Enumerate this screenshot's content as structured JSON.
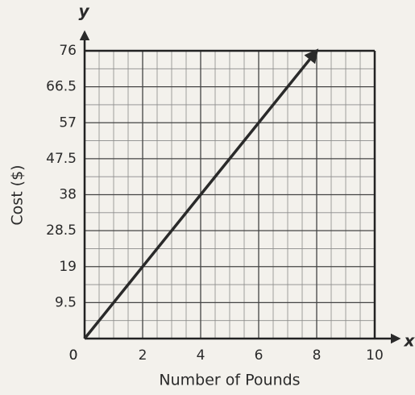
{
  "chart_data": {
    "type": "line",
    "x_axis_label": "Number of Pounds",
    "y_axis_label": "Cost ($)",
    "x_axis_letter": "x",
    "y_axis_letter": "y",
    "x": [
      0,
      8
    ],
    "series": [
      {
        "color": "#2a2a2a",
        "values": [
          0,
          76
        ]
      }
    ],
    "xlim": [
      0,
      10
    ],
    "xticks": [
      0,
      2,
      4,
      6,
      8,
      10
    ],
    "ylim": [
      0,
      76
    ],
    "yticks": [
      0,
      9.5,
      19,
      28.5,
      38,
      47.5,
      57,
      66.5,
      76
    ],
    "grid": true
  }
}
